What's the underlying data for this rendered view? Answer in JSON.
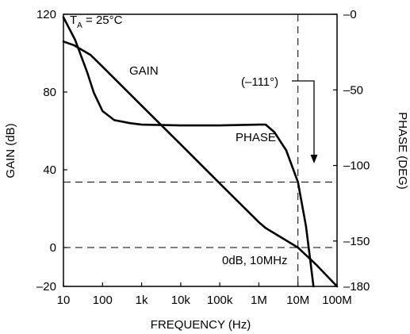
{
  "chart_data": {
    "type": "line",
    "x_scale": "log",
    "x_ticks": [
      10,
      100,
      1000,
      10000,
      100000,
      1000000,
      10000000,
      100000000
    ],
    "x_tick_labels": [
      "10",
      "100",
      "1k",
      "10k",
      "100k",
      "1M",
      "10M",
      "100M"
    ],
    "xlabel": "FREQUENCY (Hz)",
    "xlim": [
      10,
      100000000
    ],
    "y_left": {
      "label": "GAIN (dB)",
      "lim": [
        -20,
        120
      ],
      "ticks": [
        -20,
        0,
        40,
        80,
        120
      ],
      "tick_labels": [
        "–20",
        "0",
        "40",
        "80",
        "120"
      ]
    },
    "y_right": {
      "label": "PHASE (DEG)",
      "lim": [
        -180,
        0
      ],
      "ticks": [
        -180,
        -150,
        -100,
        -50,
        0
      ],
      "tick_labels": [
        "–180",
        "–150",
        "–100",
        "–50",
        "–0"
      ]
    },
    "series": [
      {
        "name": "GAIN",
        "axis": "left",
        "points": [
          [
            10,
            106
          ],
          [
            19,
            104
          ],
          [
            50,
            99
          ],
          [
            100,
            93
          ],
          [
            1000,
            73
          ],
          [
            10000,
            53
          ],
          [
            100000,
            33
          ],
          [
            1000000,
            13
          ],
          [
            1500000,
            10
          ],
          [
            10000000,
            0
          ],
          [
            30000000,
            -9
          ],
          [
            100000000,
            -20
          ]
        ]
      },
      {
        "name": "PHASE",
        "axis": "right",
        "points": [
          [
            10,
            -2
          ],
          [
            20,
            -17
          ],
          [
            40,
            -38
          ],
          [
            60,
            -52
          ],
          [
            100,
            -64
          ],
          [
            200,
            -70
          ],
          [
            500,
            -72
          ],
          [
            1000,
            -73
          ],
          [
            10000,
            -73.5
          ],
          [
            100000,
            -73.5
          ],
          [
            1000000,
            -73
          ],
          [
            1500000,
            -73
          ],
          [
            2500000,
            -78
          ],
          [
            5000000,
            -90
          ],
          [
            10000000,
            -111
          ],
          [
            16000000,
            -140
          ],
          [
            20000000,
            -160
          ],
          [
            25000000,
            -180
          ]
        ]
      }
    ],
    "reference_lines": [
      {
        "axis": "x",
        "value": 10000000
      },
      {
        "axis": "left",
        "value": 0
      },
      {
        "axis": "right",
        "value": -111
      }
    ],
    "annotations": {
      "ta_main": "T",
      "ta_sub": "A",
      "ta_rest": " = 25°C",
      "gain_label": "GAIN",
      "phase_label": "PHASE",
      "phase_value": "(–111°)",
      "crossover": "0dB, 10MHz"
    },
    "grid": false,
    "legend": "none"
  }
}
